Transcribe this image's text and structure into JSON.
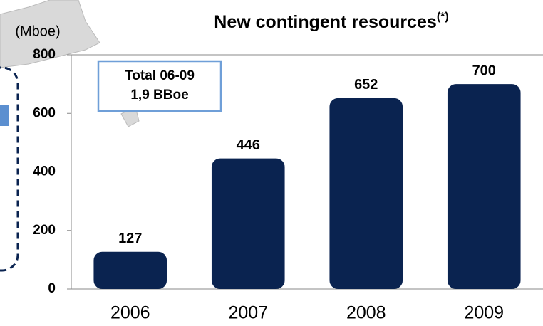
{
  "chart_data": {
    "type": "bar",
    "title": "New contingent resources",
    "title_note": "(*)",
    "y_label": "(Mboe)",
    "annotation": [
      "Total 06-09",
      "1,9 BBoe"
    ],
    "categories": [
      "2006",
      "2007",
      "2008",
      "2009"
    ],
    "values": [
      127,
      446,
      652,
      700
    ],
    "color": "#0a2350",
    "ylim": [
      0,
      800
    ],
    "yticks": [
      0,
      200,
      400,
      600,
      800
    ],
    "grid": false
  }
}
